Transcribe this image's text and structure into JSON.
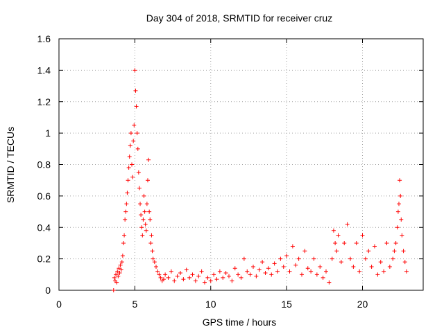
{
  "chart_data": {
    "type": "scatter",
    "title": "Day 304 of 2018, SRMTID for receiver cruz",
    "xlabel": "GPS time / hours",
    "ylabel": "SRMTID / TECUs",
    "xlim": [
      0,
      24
    ],
    "ylim": [
      0,
      1.6
    ],
    "xticks": [
      0,
      5,
      10,
      15,
      20
    ],
    "yticks": [
      0,
      0.2,
      0.4,
      0.6,
      0.8,
      1.0,
      1.2,
      1.4,
      1.6
    ],
    "xtick_labels": [
      "0",
      "5",
      "10",
      "15",
      "20"
    ],
    "ytick_labels": [
      "0",
      "0.2",
      "0.4",
      "0.6",
      "0.8",
      "1",
      "1.2",
      "1.4",
      "1.6"
    ],
    "grid": true,
    "marker": "+",
    "series": [
      {
        "name": "SRMTID",
        "color": "#ff0000",
        "x": [
          3.6,
          3.65,
          3.7,
          3.75,
          3.8,
          3.85,
          3.9,
          3.95,
          4.0,
          4.05,
          4.1,
          4.15,
          4.2,
          4.25,
          4.3,
          4.35,
          4.4,
          4.45,
          4.5,
          4.55,
          4.6,
          4.65,
          4.7,
          4.75,
          4.8,
          4.85,
          4.9,
          4.95,
          5.0,
          5.05,
          5.1,
          5.15,
          5.2,
          5.25,
          5.3,
          5.35,
          5.4,
          5.45,
          5.5,
          5.55,
          5.6,
          5.65,
          5.7,
          5.75,
          5.8,
          5.85,
          5.9,
          5.95,
          6.0,
          6.05,
          6.1,
          6.15,
          6.2,
          6.3,
          6.4,
          6.5,
          6.6,
          6.7,
          6.8,
          6.9,
          7.0,
          7.2,
          7.4,
          7.6,
          7.8,
          8.0,
          8.2,
          8.4,
          8.6,
          8.8,
          9.0,
          9.2,
          9.4,
          9.6,
          9.8,
          10.0,
          10.2,
          10.4,
          10.6,
          10.8,
          11.0,
          11.2,
          11.4,
          11.6,
          11.8,
          12.0,
          12.2,
          12.4,
          12.6,
          12.8,
          13.0,
          13.2,
          13.4,
          13.6,
          13.8,
          14.0,
          14.2,
          14.4,
          14.6,
          14.8,
          15.0,
          15.2,
          15.4,
          15.6,
          15.8,
          16.0,
          16.2,
          16.4,
          16.6,
          16.8,
          17.0,
          17.2,
          17.4,
          17.6,
          17.8,
          18.0,
          18.1,
          18.2,
          18.3,
          18.4,
          18.6,
          18.8,
          19.0,
          19.2,
          19.4,
          19.6,
          19.8,
          20.0,
          20.2,
          20.4,
          20.6,
          20.8,
          21.0,
          21.2,
          21.4,
          21.6,
          21.8,
          22.0,
          22.1,
          22.2,
          22.3,
          22.35,
          22.4,
          22.45,
          22.5,
          22.55,
          22.6,
          22.7,
          22.8,
          22.9
        ],
        "y": [
          0.0,
          0.08,
          0.06,
          0.1,
          0.05,
          0.12,
          0.09,
          0.14,
          0.11,
          0.16,
          0.13,
          0.18,
          0.22,
          0.3,
          0.35,
          0.45,
          0.5,
          0.55,
          0.62,
          0.7,
          0.78,
          0.85,
          0.92,
          1.0,
          0.8,
          0.72,
          0.95,
          1.05,
          1.4,
          1.27,
          1.17,
          1.0,
          0.9,
          0.75,
          0.65,
          0.55,
          0.48,
          0.4,
          0.35,
          0.45,
          0.6,
          0.5,
          0.42,
          0.38,
          0.55,
          0.7,
          0.83,
          0.5,
          0.45,
          0.3,
          0.35,
          0.25,
          0.2,
          0.18,
          0.15,
          0.12,
          0.1,
          0.08,
          0.06,
          0.07,
          0.1,
          0.08,
          0.12,
          0.06,
          0.09,
          0.11,
          0.07,
          0.13,
          0.08,
          0.1,
          0.06,
          0.09,
          0.12,
          0.05,
          0.08,
          0.06,
          0.1,
          0.07,
          0.12,
          0.08,
          0.11,
          0.09,
          0.06,
          0.14,
          0.1,
          0.08,
          0.2,
          0.12,
          0.1,
          0.15,
          0.09,
          0.13,
          0.18,
          0.11,
          0.14,
          0.1,
          0.17,
          0.12,
          0.2,
          0.15,
          0.22,
          0.12,
          0.28,
          0.16,
          0.2,
          0.1,
          0.25,
          0.14,
          0.12,
          0.2,
          0.1,
          0.15,
          0.08,
          0.12,
          0.05,
          0.2,
          0.38,
          0.3,
          0.25,
          0.35,
          0.18,
          0.3,
          0.42,
          0.2,
          0.15,
          0.3,
          0.12,
          0.35,
          0.2,
          0.25,
          0.15,
          0.28,
          0.1,
          0.18,
          0.12,
          0.3,
          0.15,
          0.2,
          0.25,
          0.3,
          0.4,
          0.5,
          0.55,
          0.7,
          0.6,
          0.45,
          0.35,
          0.25,
          0.18,
          0.12
        ]
      }
    ]
  }
}
